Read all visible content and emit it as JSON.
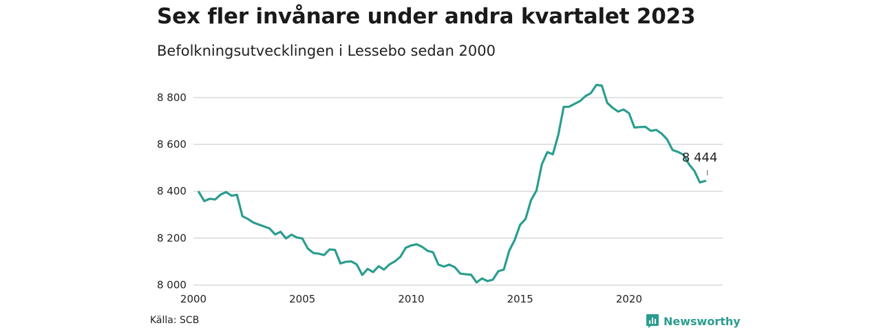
{
  "header": {
    "title": "Sex fler invånare under andra kvartalet 2023",
    "subtitle": "Befolkningsutvecklingen i Lessebo sedan 2000"
  },
  "footer": {
    "source": "Källa: SCB",
    "brand": "Newsworthy",
    "brand_icon": "bar-chart-icon",
    "brand_color": "#2a9d8f"
  },
  "chart_data": {
    "type": "line",
    "title": "Sex fler invånare under andra kvartalet 2023",
    "subtitle": "Befolkningsutvecklingen i Lessebo sedan 2000",
    "xlabel": "",
    "ylabel": "",
    "xlim": [
      2000,
      2024.3
    ],
    "ylim": [
      7990,
      8870
    ],
    "x_ticks": [
      2000,
      2005,
      2010,
      2015,
      2020
    ],
    "x_tick_labels": [
      "2000",
      "2005",
      "2010",
      "2015",
      "2020"
    ],
    "y_ticks": [
      8000,
      8200,
      8400,
      8600,
      8800
    ],
    "y_tick_labels": [
      "8 000",
      "8 200",
      "8 400",
      "8 600",
      "8 800"
    ],
    "grid": true,
    "line_color": "#2a9d8f",
    "end_label": "8 444",
    "series": [
      {
        "x": [
          2000.25,
          2000.5,
          2000.75,
          2001.0,
          2001.25,
          2001.5,
          2001.75,
          2002.0,
          2002.25,
          2002.5,
          2002.75,
          2003.0,
          2003.25,
          2003.5,
          2003.75,
          2004.0,
          2004.25,
          2004.5,
          2004.75,
          2005.0,
          2005.25,
          2005.5,
          2005.75,
          2006.0,
          2006.25,
          2006.5,
          2006.75,
          2007.0,
          2007.25,
          2007.5,
          2007.75,
          2008.0,
          2008.25,
          2008.5,
          2008.75,
          2009.0,
          2009.25,
          2009.5,
          2009.75,
          2010.0,
          2010.25,
          2010.5,
          2010.75,
          2011.0,
          2011.25,
          2011.5,
          2011.75,
          2012.0,
          2012.25,
          2012.5,
          2012.75,
          2013.0,
          2013.25,
          2013.5,
          2013.75,
          2014.0,
          2014.25,
          2014.5,
          2014.75,
          2015.0,
          2015.25,
          2015.5,
          2015.75,
          2016.0,
          2016.25,
          2016.5,
          2016.75,
          2017.0,
          2017.25,
          2017.5,
          2017.75,
          2018.0,
          2018.25,
          2018.5,
          2018.75,
          2019.0,
          2019.25,
          2019.5,
          2019.75,
          2020.0,
          2020.25,
          2020.5,
          2020.75,
          2021.0,
          2021.25,
          2021.5,
          2021.75,
          2022.0,
          2022.25,
          2022.5,
          2022.75,
          2023.0,
          2023.25,
          2023.5
        ],
        "values": [
          8397,
          8358,
          8368,
          8365,
          8386,
          8397,
          8381,
          8385,
          8294,
          8282,
          8267,
          8258,
          8250,
          8241,
          8216,
          8227,
          8199,
          8215,
          8203,
          8199,
          8156,
          8137,
          8134,
          8128,
          8152,
          8150,
          8092,
          8099,
          8101,
          8088,
          8043,
          8069,
          8055,
          8080,
          8066,
          8088,
          8101,
          8120,
          8159,
          8169,
          8174,
          8163,
          8146,
          8140,
          8087,
          8079,
          8087,
          8076,
          8049,
          8046,
          8044,
          8011,
          8028,
          8017,
          8023,
          8059,
          8066,
          8147,
          8192,
          8257,
          8282,
          8362,
          8403,
          8515,
          8567,
          8558,
          8640,
          8760,
          8761,
          8773,
          8785,
          8806,
          8819,
          8854,
          8851,
          8777,
          8756,
          8740,
          8749,
          8733,
          8672,
          8674,
          8675,
          8658,
          8662,
          8646,
          8621,
          8576,
          8568,
          8556,
          8516,
          8487,
          8438,
          8444
        ]
      }
    ]
  }
}
